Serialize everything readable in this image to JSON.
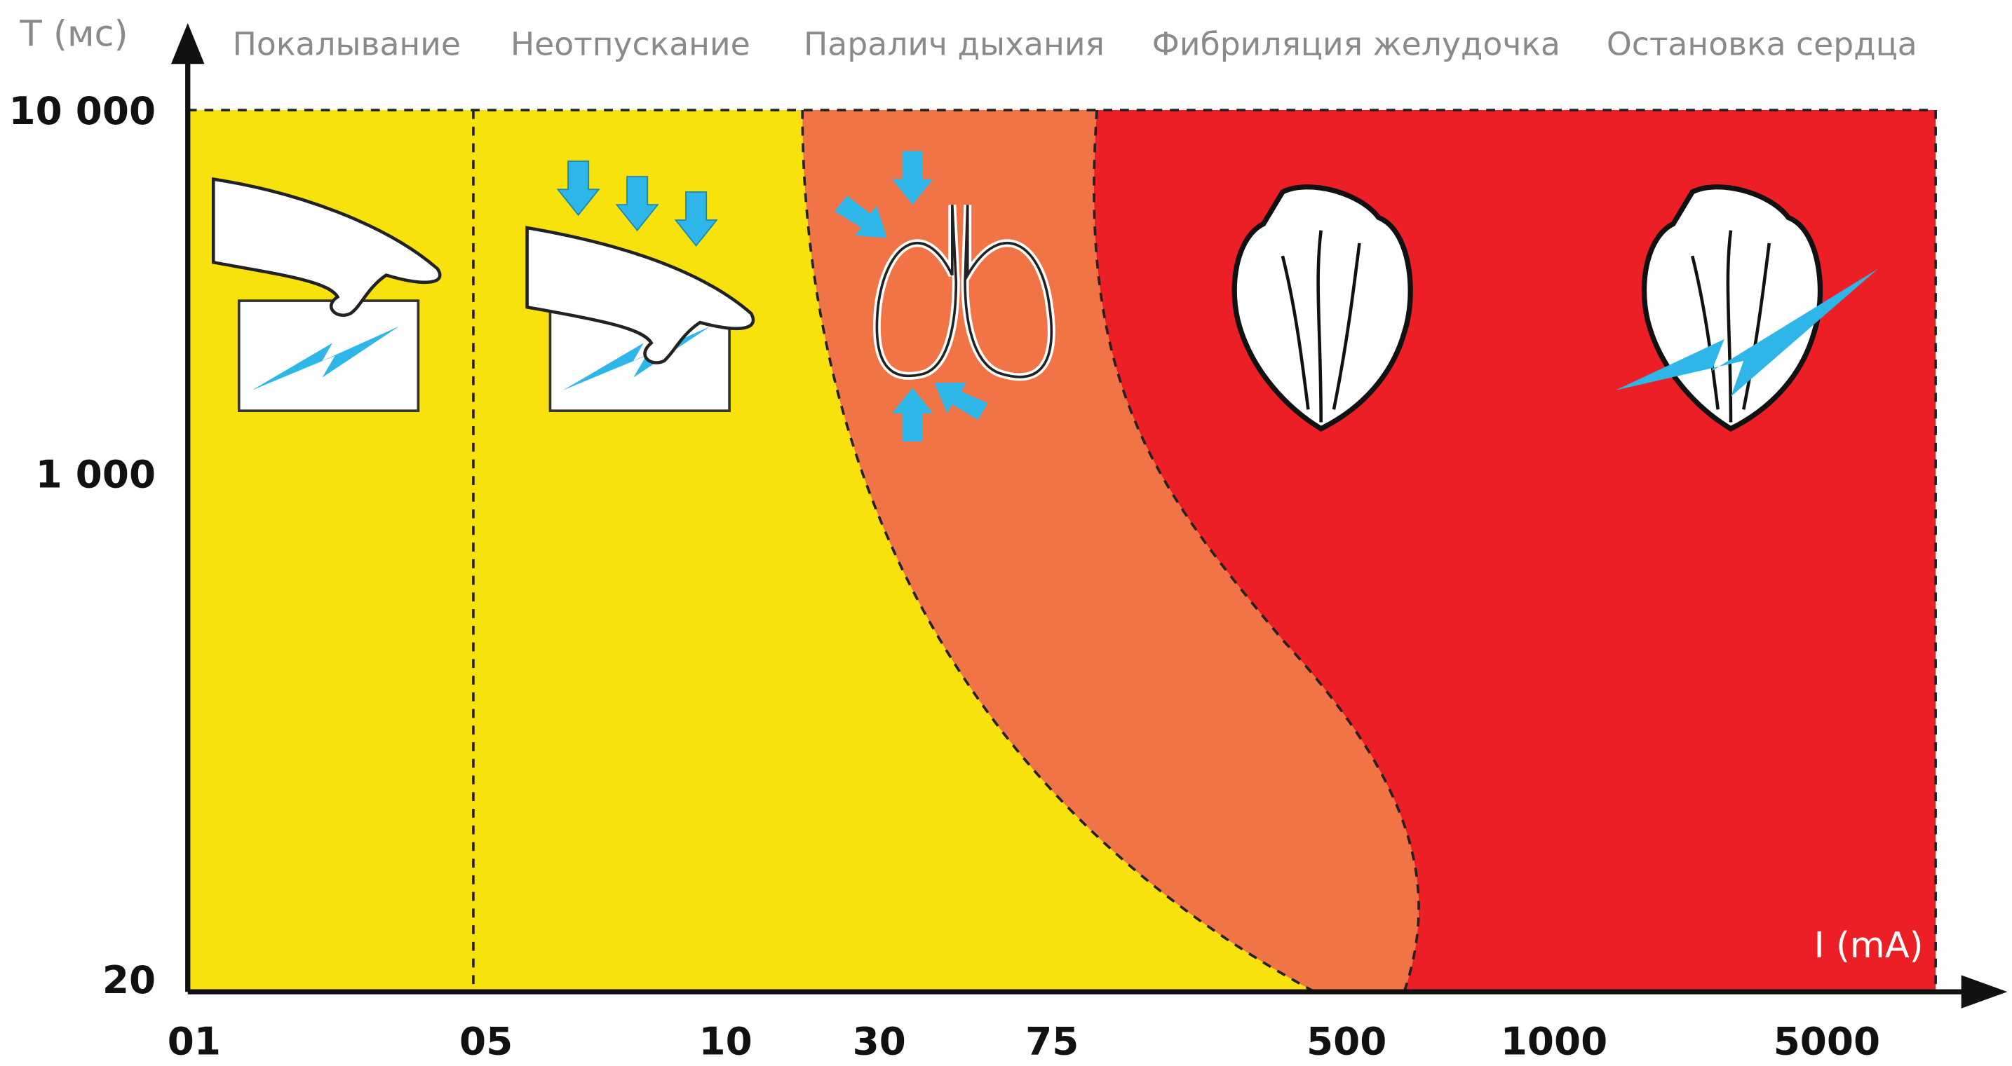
{
  "axis": {
    "y_label": "T (мс)",
    "x_label": "I (mA)",
    "y_ticks": [
      "10 000",
      "1 000",
      "20"
    ],
    "x_ticks": [
      "01",
      "05",
      "10",
      "30",
      "75",
      "500",
      "1000",
      "5000"
    ]
  },
  "zones": [
    "Покалывание",
    "Неотпускание",
    "Паралич дыхания",
    "Фибриляция желудочка",
    "Остановка сердца"
  ]
}
